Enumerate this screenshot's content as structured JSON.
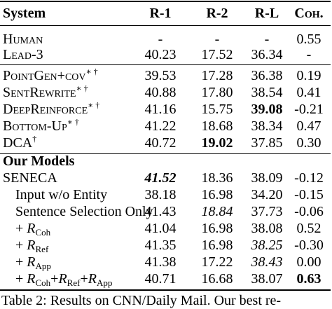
{
  "header": {
    "system": "System",
    "r1": "R-1",
    "r2": "R-2",
    "rl": "R-L",
    "coh": "Coh."
  },
  "baselines": [
    {
      "name": "Human",
      "r1": "-",
      "r2": "-",
      "rl": "-",
      "coh": "0.55"
    },
    {
      "name": "Lead-3",
      "r1": "40.23",
      "r2": "17.52",
      "rl": "36.34",
      "coh": "-"
    }
  ],
  "prior": [
    {
      "name": "PointGen+cov",
      "mark": "∗ †",
      "r1": "39.53",
      "r2": "17.28",
      "rl": "36.38",
      "coh": "0.19"
    },
    {
      "name": "SentRewrite",
      "mark": "∗ †",
      "r1": "40.88",
      "r2": "17.80",
      "rl": "38.54",
      "coh": "0.41"
    },
    {
      "name": "DeepReinforce",
      "mark": "∗ †",
      "r1": "41.16",
      "r2": "15.75",
      "rl": "39.08",
      "coh": "-0.21"
    },
    {
      "name": "Bottom-Up",
      "mark": "∗ †",
      "r1": "41.22",
      "r2": "18.68",
      "rl": "38.34",
      "coh": "0.47"
    },
    {
      "name": "DCA",
      "mark": "†",
      "r1": "40.72",
      "r2": "19.02",
      "rl": "37.85",
      "coh": "0.30"
    }
  ],
  "our_models_label": "Our Models",
  "ours": [
    {
      "name": "SENECA",
      "r1": "41.52",
      "r2": "18.36",
      "rl": "38.09",
      "coh": "-0.12"
    },
    {
      "name": "Input w/o Entity",
      "r1": "38.18",
      "r2": "16.98",
      "rl": "34.20",
      "coh": "-0.15"
    },
    {
      "name": "Sentence Selection Only",
      "r1": "41.43",
      "r2": "18.84",
      "rl": "37.73",
      "coh": "-0.06"
    },
    {
      "prefix": "+ ",
      "var": "R",
      "sub": "Coh",
      "r1": "41.04",
      "r2": "16.98",
      "rl": "38.08",
      "coh": "0.52"
    },
    {
      "prefix": "+ ",
      "var": "R",
      "sub": "Ref",
      "r1": "41.35",
      "r2": "16.98",
      "rl": "38.25",
      "coh": "-0.30"
    },
    {
      "prefix": "+ ",
      "var": "R",
      "sub": "App",
      "r1": "41.38",
      "r2": "17.22",
      "rl": "38.43",
      "coh": "0.00"
    },
    {
      "prefix": "+ ",
      "var": "R",
      "sub1": "Coh",
      "sub2": "Ref",
      "sub3": "App",
      "plus": "+",
      "r1": "40.71",
      "r2": "16.68",
      "rl": "38.07",
      "coh": "0.63"
    }
  ],
  "caption": "Table 2:  Results on CNN/Daily Mail.  Our best re-"
}
